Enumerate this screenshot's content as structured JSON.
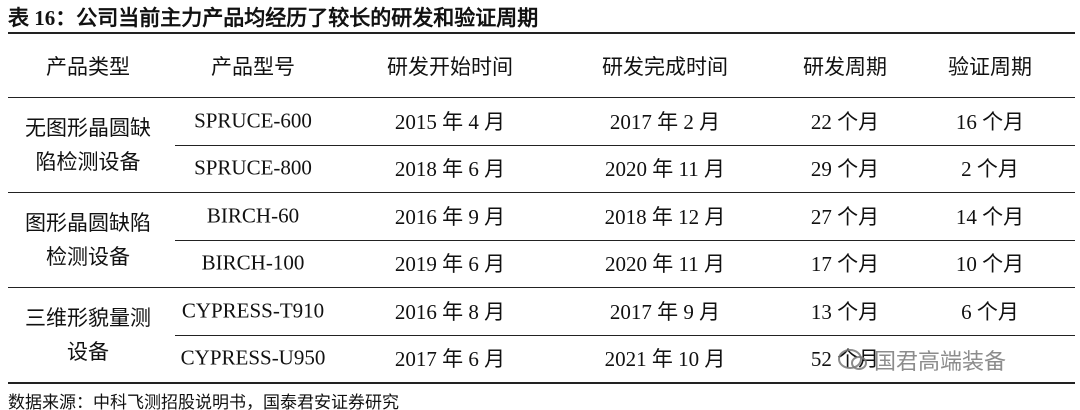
{
  "title": "表 16：公司当前主力产品均经历了较长的研发和验证周期",
  "table": {
    "header": [
      "产品类型",
      "产品型号",
      "研发开始时间",
      "研发完成时间",
      "研发周期",
      "验证周期"
    ],
    "groups": [
      {
        "type": "无图形晶圆缺陷检测设备",
        "rows": [
          [
            "SPRUCE-600",
            "2015 年 4 月",
            "2017 年 2 月",
            "22 个月",
            "16 个月"
          ],
          [
            "SPRUCE-800",
            "2018 年 6 月",
            "2020 年 11 月",
            "29 个月",
            "2 个月"
          ]
        ]
      },
      {
        "type": "图形晶圆缺陷检测设备",
        "rows": [
          [
            "BIRCH-60",
            "2016 年 9 月",
            "2018 年 12 月",
            "27 个月",
            "14 个月"
          ],
          [
            "BIRCH-100",
            "2019 年 6 月",
            "2020 年 11 月",
            "17 个月",
            "10 个月"
          ]
        ]
      },
      {
        "type": "三维形貌量测设备",
        "rows": [
          [
            "CYPRESS-T910",
            "2016 年 8 月",
            "2017 年 9 月",
            "13 个月",
            "6 个月"
          ],
          [
            "CYPRESS-U950",
            "2017 年 6 月",
            "2021 年 10 月",
            "52 个月"
          ]
        ]
      }
    ]
  },
  "source": "数据来源：中科飞测招股说明书，国泰君安证券研究",
  "watermark": "国君高端装备"
}
